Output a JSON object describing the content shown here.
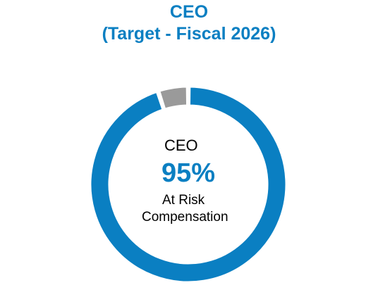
{
  "chart_data": {
    "type": "pie",
    "title": "CEO",
    "subtitle": "(Target - Fiscal 2026)",
    "center": {
      "label": "CEO",
      "value": "95%",
      "caption_line1": "At Risk",
      "caption_line2": "Compensation"
    },
    "slices": [
      {
        "value": 95,
        "color": "#0a7fc2"
      },
      {
        "value": 5,
        "color": "#9a9a9a"
      }
    ],
    "start_angle_degrees": 0,
    "direction": "clockwise",
    "gap_color": "#ffffff"
  }
}
